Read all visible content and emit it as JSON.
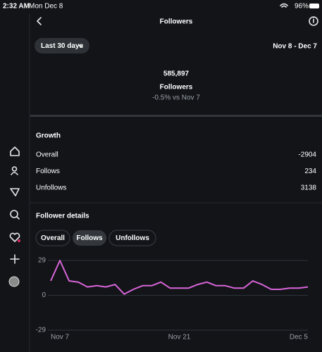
{
  "status": {
    "time": "2:32 AM",
    "date": "Mon Dec 8",
    "battery": "96%"
  },
  "header": {
    "title": "Followers"
  },
  "filter": {
    "range_button": "Last 30 days",
    "date_range": "Nov 8 - Dec 7"
  },
  "summary": {
    "count": "585,897",
    "label": "Followers",
    "change": "-0.5% vs Nov 7"
  },
  "growth": {
    "title": "Growth",
    "rows": [
      [
        "Overall",
        "-2904"
      ],
      [
        "Follows",
        "234"
      ],
      [
        "Unfollows",
        "3138"
      ]
    ]
  },
  "details": {
    "title": "Follower details",
    "tabs": [
      "Overall",
      "Follows",
      "Unfollows"
    ]
  },
  "chart_data": {
    "type": "line",
    "color": "#d864d8",
    "categories": [
      "Nov 7",
      null,
      null,
      null,
      null,
      null,
      null,
      null,
      null,
      null,
      null,
      null,
      null,
      null,
      "Nov 21",
      null,
      null,
      null,
      null,
      null,
      null,
      null,
      null,
      null,
      null,
      null,
      null,
      null,
      "Dec 5"
    ],
    "values": [
      12,
      29,
      12,
      11,
      7,
      8,
      7,
      9,
      1,
      5,
      8,
      8,
      11,
      6,
      6,
      6,
      9,
      11,
      8,
      8,
      6,
      6,
      12,
      9,
      5,
      5,
      6,
      6,
      7
    ],
    "ylim": [
      -29,
      29
    ],
    "yticks": [
      29,
      0,
      -29
    ],
    "grid": true
  }
}
